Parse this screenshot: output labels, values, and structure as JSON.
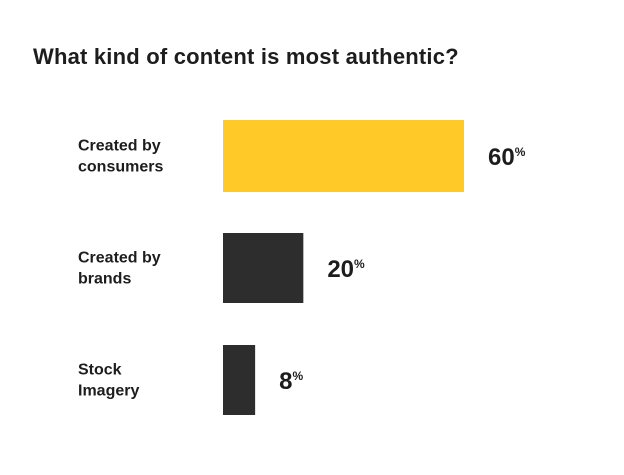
{
  "chart_data": {
    "type": "bar",
    "orientation": "horizontal",
    "title": "What kind of content is most authentic?",
    "categories": [
      [
        "Created by",
        "consumers"
      ],
      [
        "Created by",
        "brands"
      ],
      [
        "Stock",
        "Imagery"
      ]
    ],
    "values": [
      60,
      20,
      8
    ],
    "value_labels": [
      "60",
      "20",
      "8"
    ],
    "unit_suffix": "%",
    "bar_colors": [
      "#ffca28",
      "#2d2d2d",
      "#2d2d2d"
    ],
    "xlim": [
      0,
      60
    ],
    "xlabel": "",
    "ylabel": "",
    "grid": false,
    "legend": "none"
  }
}
